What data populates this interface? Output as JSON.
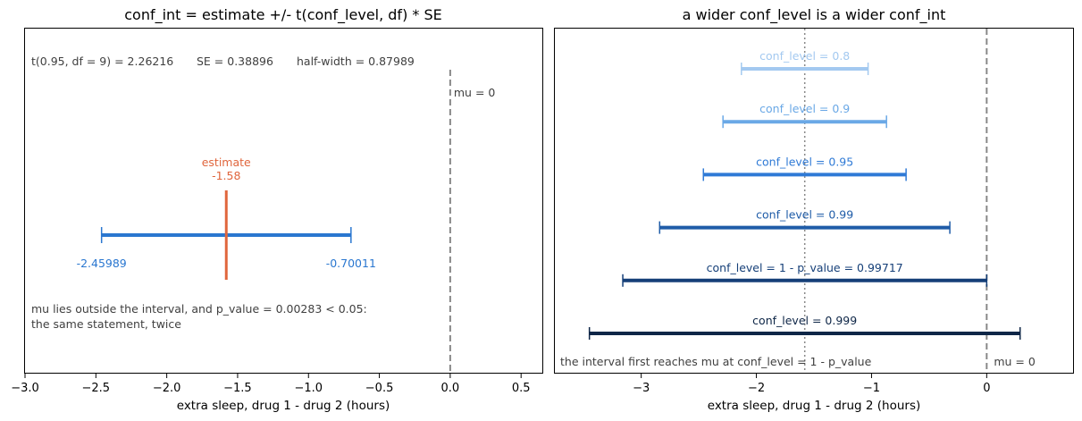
{
  "chart_data": [
    {
      "type": "interval",
      "title": "conf_int = estimate +/- t(conf_level, df) * SE",
      "xlabel": "extra sleep, drug 1 - drug 2 (hours)",
      "xlim": [
        -3.0,
        0.65
      ],
      "xticks": [
        -3.0,
        -2.5,
        -2.0,
        -1.5,
        -1.0,
        -0.5,
        0.0,
        0.5
      ],
      "xtick_labels": [
        "−3.0",
        "−2.5",
        "−2.0",
        "−1.5",
        "−1.0",
        "−0.5",
        "0.0",
        "0.5"
      ],
      "header_stats": [
        "t(0.95, df = 9) = 2.26216",
        "SE = 0.38896",
        "half-width = 0.87989"
      ],
      "mu": 0.0,
      "mu_label": "mu = 0",
      "estimate": -1.58,
      "estimate_label": "estimate",
      "estimate_value_label": "-1.58",
      "interval": [
        -2.45989,
        -0.70011
      ],
      "interval_labels": [
        "-2.45989",
        "-0.70011"
      ],
      "note_lines": [
        "mu lies outside the interval, and p_value = 0.00283 < 0.05:",
        "the same statement, twice"
      ],
      "colors": {
        "interval": "#2a77d0",
        "estimate": "#e0663d",
        "mu_line": "#888888"
      }
    },
    {
      "type": "interval",
      "title": "a wider conf_level is a wider conf_int",
      "xlabel": "extra sleep, drug 1 - drug 2 (hours)",
      "xlim": [
        -3.75,
        0.75
      ],
      "xticks": [
        -3,
        -2,
        -1,
        0
      ],
      "xtick_labels": [
        "−3",
        "−2",
        "−1",
        "0"
      ],
      "estimate": -1.58,
      "mu": 0.0,
      "mu_label": "mu = 0",
      "footer_note": "the interval first reaches mu at conf_level = 1 - p_value",
      "series": [
        {
          "label": "conf_level = 0.8",
          "lo": -2.13,
          "hi": -1.03,
          "color": "#a3c9f0"
        },
        {
          "label": "conf_level = 0.9",
          "lo": -2.29,
          "hi": -0.87,
          "color": "#6aa8e6"
        },
        {
          "label": "conf_level = 0.95",
          "lo": -2.46,
          "hi": -0.7,
          "color": "#2f7ad6"
        },
        {
          "label": "conf_level = 0.99",
          "lo": -2.84,
          "hi": -0.32,
          "color": "#1f5ca8"
        },
        {
          "label": "conf_level = 1 - p_value = 0.99717",
          "lo": -3.16,
          "hi": 0.0,
          "color": "#153f78"
        },
        {
          "label": "conf_level = 0.999",
          "lo": -3.45,
          "hi": 0.29,
          "color": "#0e2647"
        }
      ]
    }
  ]
}
